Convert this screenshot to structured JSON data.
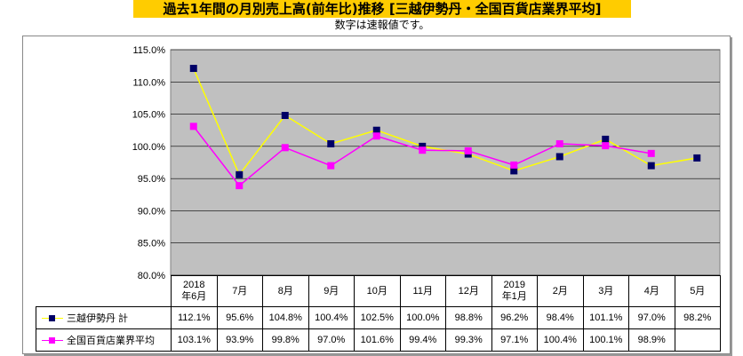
{
  "title": "過去1年間の月別売上高(前年比)推移 [三越伊勢丹・全国百貨店業界平均]",
  "subtitle": "数字は速報値です。",
  "chart_data": {
    "type": "line",
    "title": "過去1年間の月別売上高(前年比)推移 [三越伊勢丹・全国百貨店業界平均]",
    "categories": [
      "2018\n年6月",
      "7月",
      "8月",
      "9月",
      "10月",
      "11月",
      "12月",
      "2019\n年1月",
      "2月",
      "3月",
      "4月",
      "5月"
    ],
    "ylim": [
      80,
      115
    ],
    "yticks": [
      "80.0%",
      "85.0%",
      "90.0%",
      "95.0%",
      "100.0%",
      "105.0%",
      "110.0%",
      "115.0%"
    ],
    "yticks_values": [
      80,
      85,
      90,
      95,
      100,
      105,
      110,
      115
    ],
    "grid": true,
    "series": [
      {
        "name": "三越伊勢丹 計",
        "values": [
          112.1,
          95.6,
          104.8,
          100.4,
          102.5,
          100.0,
          98.8,
          96.2,
          98.4,
          101.1,
          97.0,
          98.2
        ],
        "labels": [
          "112.1%",
          "95.6%",
          "104.8%",
          "100.4%",
          "102.5%",
          "100.0%",
          "98.8%",
          "96.2%",
          "98.4%",
          "101.1%",
          "97.0%",
          "98.2%"
        ],
        "line_color": "#ffff00",
        "marker_color": "#000066"
      },
      {
        "name": "全国百貨店業界平均",
        "values": [
          103.1,
          93.9,
          99.8,
          97.0,
          101.6,
          99.4,
          99.3,
          97.1,
          100.4,
          100.1,
          98.9,
          null
        ],
        "labels": [
          "103.1%",
          "93.9%",
          "99.8%",
          "97.0%",
          "101.6%",
          "99.4%",
          "99.3%",
          "97.1%",
          "100.4%",
          "100.1%",
          "98.9%",
          ""
        ],
        "line_color": "#ff00ff",
        "marker_color": "#ff00ff"
      }
    ]
  }
}
